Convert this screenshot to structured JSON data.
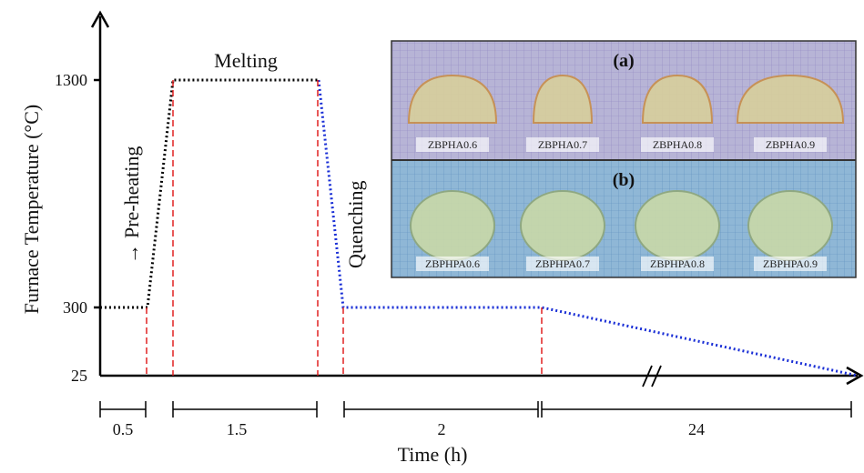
{
  "y_axis": {
    "label": "Furnace Temperature (°C)",
    "ticks": [
      1300,
      300,
      25
    ]
  },
  "x_axis": {
    "label": "Time (h)"
  },
  "stages": [
    "Pre-heating",
    "Melting",
    "Quenching"
  ],
  "durations": [
    0.5,
    1.5,
    2,
    24
  ],
  "photo": {
    "panels": [
      {
        "label": "(a)",
        "samples": [
          "ZBPHA0.6",
          "ZBPHA0.7",
          "ZBPHA0.8",
          "ZBPHA0.9"
        ]
      },
      {
        "label": "(b)",
        "samples": [
          "ZBPHPA0.6",
          "ZBPHPA0.7",
          "ZBPHPA0.8",
          "ZBPHPA0.9"
        ]
      }
    ]
  }
}
